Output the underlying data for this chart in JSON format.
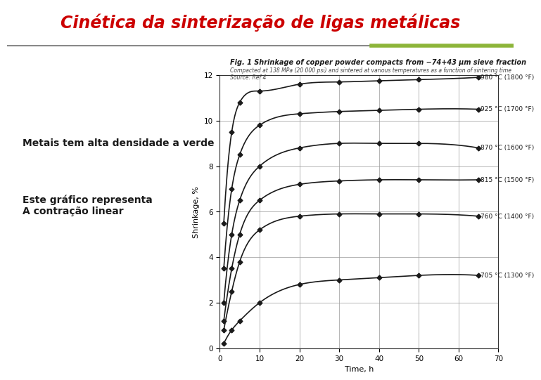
{
  "title": "Cinética da sinterização de ligas metálicas",
  "title_color": "#cc0000",
  "bg_color": "#ffffff",
  "slide_bg": "#f0f0f0",
  "fig_title": "Fig. 1 Shrinkage of copper powder compacts from −74+43 μm sieve fraction",
  "fig_subtitle": "Compacted at 138 MPa (20 000 psi) and sintered at various temperatures as a function of sintering time\nSource: Ref 4",
  "left_text1": "Metais tem alta densidade a verde",
  "left_text2": "Este gráfico representa\nA contração linear",
  "xlabel": "Time, h",
  "ylabel": "Shrinkage, %",
  "xlim": [
    0,
    70
  ],
  "ylim": [
    0,
    12
  ],
  "xticks": [
    0,
    10,
    20,
    30,
    40,
    50,
    60,
    70
  ],
  "yticks": [
    0,
    2,
    4,
    6,
    8,
    10,
    12
  ],
  "curves": [
    {
      "label": "980 °C (1800 °F)",
      "color": "#1a1a1a",
      "x": [
        1,
        3,
        5,
        10,
        20,
        30,
        40,
        50,
        65
      ],
      "y": [
        5.5,
        9.5,
        10.8,
        11.3,
        11.6,
        11.7,
        11.75,
        11.8,
        11.9
      ]
    },
    {
      "label": "925 °C (1700 °F)",
      "color": "#1a1a1a",
      "x": [
        1,
        3,
        5,
        10,
        20,
        30,
        40,
        50,
        65
      ],
      "y": [
        3.5,
        7.0,
        8.5,
        9.8,
        10.3,
        10.4,
        10.45,
        10.5,
        10.5
      ]
    },
    {
      "label": "870 °C (1600 °F)",
      "color": "#1a1a1a",
      "x": [
        1,
        3,
        5,
        10,
        20,
        30,
        40,
        50,
        65
      ],
      "y": [
        2.0,
        5.0,
        6.5,
        8.0,
        8.8,
        9.0,
        9.0,
        9.0,
        8.8
      ]
    },
    {
      "label": "815 °C (1500 °F)",
      "color": "#1a1a1a",
      "x": [
        1,
        3,
        5,
        10,
        20,
        30,
        40,
        50,
        65
      ],
      "y": [
        1.2,
        3.5,
        5.0,
        6.5,
        7.2,
        7.35,
        7.4,
        7.4,
        7.4
      ]
    },
    {
      "label": "760 °C (1400 °F)",
      "color": "#1a1a1a",
      "x": [
        1,
        3,
        5,
        10,
        20,
        30,
        40,
        50,
        65
      ],
      "y": [
        0.8,
        2.5,
        3.8,
        5.2,
        5.8,
        5.9,
        5.9,
        5.9,
        5.8
      ]
    },
    {
      "label": "705 °C (1300 °F)",
      "color": "#1a1a1a",
      "x": [
        1,
        3,
        5,
        10,
        20,
        30,
        40,
        50,
        65
      ],
      "y": [
        0.2,
        0.8,
        1.2,
        2.0,
        2.8,
        3.0,
        3.1,
        3.2,
        3.2
      ]
    }
  ],
  "accent_bar_color": "#8db53a",
  "header_line_color": "#888888"
}
